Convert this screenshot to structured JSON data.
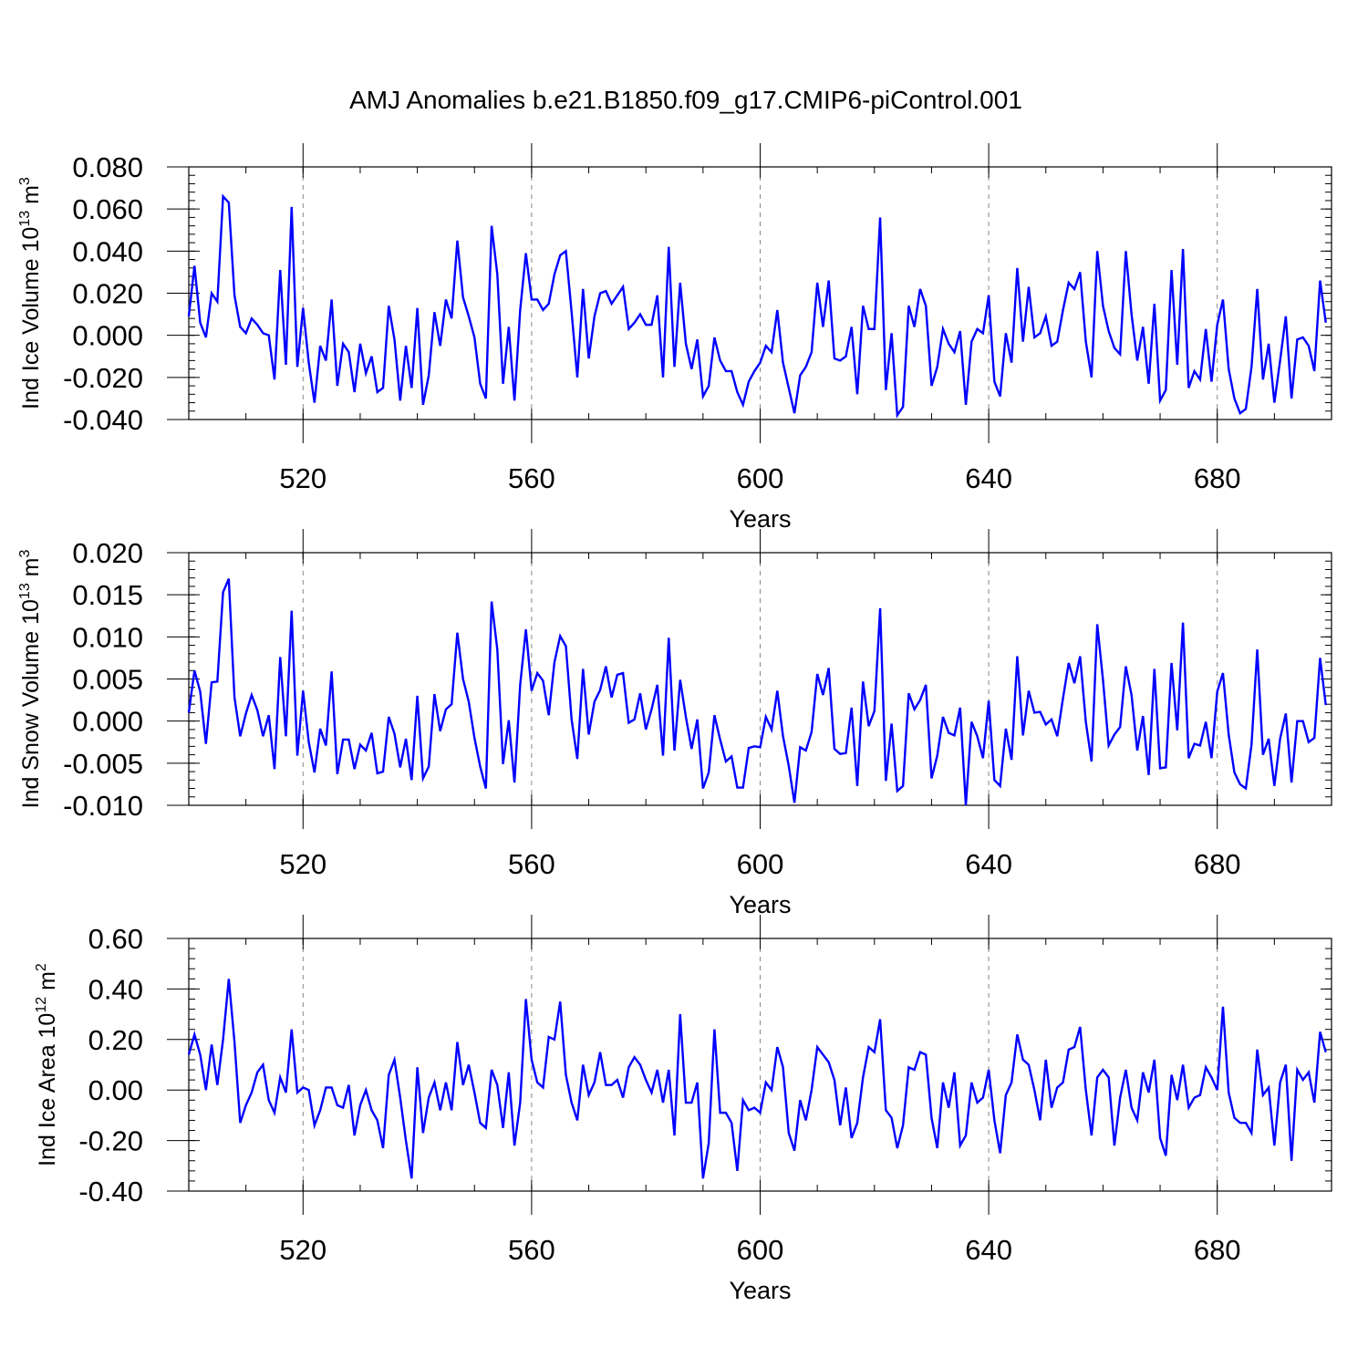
{
  "title": "AMJ Anomalies b.e21.B1850.f09_g17.CMIP6-piControl.001",
  "series_color": "#0000ff",
  "chart_data": [
    {
      "type": "line",
      "ylabel": "Ind Ice Volume",
      "ylabel_scale": "10",
      "ylabel_exp": "13",
      "ylabel_unit": "m",
      "ylabel_unit_exp": "3",
      "xlabel": "Years",
      "xlim": [
        500,
        700
      ],
      "ylim": [
        -0.04,
        0.08
      ],
      "xticks": [
        520,
        560,
        600,
        640,
        680
      ],
      "xtick_labels": [
        "520",
        "560",
        "600",
        "640",
        "680"
      ],
      "yticks": [
        -0.04,
        -0.02,
        0.0,
        0.02,
        0.04,
        0.06,
        0.08
      ],
      "ytick_labels": [
        "-0.040",
        "-0.020",
        "0.000",
        "0.020",
        "0.040",
        "0.060",
        "0.080"
      ],
      "grid": "vertical dashed at major x ticks",
      "x_start": 500,
      "x_step": 1,
      "values": [
        0.009,
        0.033,
        0.006,
        -0.001,
        0.02,
        0.016,
        0.066,
        0.063,
        0.019,
        0.004,
        0.001,
        0.008,
        0.005,
        0.001,
        0.0,
        -0.021,
        0.031,
        -0.014,
        0.061,
        -0.015,
        0.013,
        -0.013,
        -0.032,
        -0.005,
        -0.012,
        0.017,
        -0.024,
        -0.004,
        -0.008,
        -0.027,
        -0.004,
        -0.018,
        -0.01,
        -0.027,
        -0.025,
        0.014,
        -0.002,
        -0.031,
        -0.005,
        -0.025,
        0.013,
        -0.033,
        -0.019,
        0.011,
        -0.005,
        0.017,
        0.008,
        0.045,
        0.018,
        0.009,
        -0.001,
        -0.023,
        -0.03,
        0.052,
        0.029,
        -0.023,
        0.004,
        -0.031,
        0.012,
        0.039,
        0.017,
        0.017,
        0.012,
        0.015,
        0.029,
        0.038,
        0.04,
        0.011,
        -0.02,
        0.022,
        -0.011,
        0.009,
        0.02,
        0.021,
        0.015,
        0.019,
        0.023,
        0.003,
        0.006,
        0.01,
        0.005,
        0.005,
        0.019,
        -0.02,
        0.042,
        -0.015,
        0.025,
        -0.004,
        -0.016,
        -0.002,
        -0.029,
        -0.024,
        -0.001,
        -0.012,
        -0.017,
        -0.017,
        -0.027,
        -0.033,
        -0.022,
        -0.017,
        -0.013,
        -0.005,
        -0.008,
        0.012,
        -0.013,
        -0.025,
        -0.037,
        -0.019,
        -0.015,
        -0.008,
        0.025,
        0.004,
        0.026,
        -0.011,
        -0.012,
        -0.01,
        0.004,
        -0.028,
        0.014,
        0.003,
        0.003,
        0.056,
        -0.026,
        0.001,
        -0.038,
        -0.034,
        0.014,
        0.004,
        0.022,
        0.014,
        -0.024,
        -0.015,
        0.003,
        -0.004,
        -0.008,
        0.002,
        -0.033,
        -0.003,
        0.003,
        0.001,
        0.019,
        -0.022,
        -0.029,
        0.001,
        -0.013,
        0.032,
        -0.003,
        0.023,
        -0.001,
        0.001,
        0.009,
        -0.005,
        -0.003,
        0.012,
        0.025,
        0.022,
        0.03,
        -0.003,
        -0.02,
        0.04,
        0.014,
        0.002,
        -0.006,
        -0.009,
        0.04,
        0.01,
        -0.012,
        0.004,
        -0.023,
        0.015,
        -0.031,
        -0.026,
        0.031,
        -0.014,
        0.041,
        -0.025,
        -0.017,
        -0.021,
        0.003,
        -0.022,
        0.005,
        0.017,
        -0.016,
        -0.03,
        -0.037,
        -0.035,
        -0.015,
        0.022,
        -0.021,
        -0.004,
        -0.032,
        -0.012,
        0.009,
        -0.03,
        -0.002,
        -0.001,
        -0.005,
        -0.017,
        0.026,
        0.006
      ]
    },
    {
      "type": "line",
      "ylabel": "Ind Snow Volume",
      "ylabel_scale": "10",
      "ylabel_exp": "13",
      "ylabel_unit": "m",
      "ylabel_unit_exp": "3",
      "xlabel": "Years",
      "xlim": [
        500,
        700
      ],
      "ylim": [
        -0.01,
        0.02
      ],
      "xticks": [
        520,
        560,
        600,
        640,
        680
      ],
      "xtick_labels": [
        "520",
        "560",
        "600",
        "640",
        "680"
      ],
      "yticks": [
        -0.01,
        -0.005,
        0.0,
        0.005,
        0.01,
        0.015,
        0.02
      ],
      "ytick_labels": [
        "-0.010",
        "-0.005",
        "0.000",
        "0.005",
        "0.010",
        "0.015",
        "0.020"
      ],
      "grid": "vertical dashed at major x ticks",
      "x_start": 500,
      "x_step": 1,
      "values": [
        0.001,
        0.006,
        0.0035,
        -0.0027,
        0.0046,
        0.0047,
        0.0153,
        0.0169,
        0.0028,
        -0.0018,
        0.0009,
        0.0031,
        0.0013,
        -0.0018,
        0.0007,
        -0.0057,
        0.0076,
        -0.0018,
        0.0131,
        -0.0041,
        0.0036,
        -0.0025,
        -0.0061,
        -0.0009,
        -0.0029,
        0.0059,
        -0.0063,
        -0.0022,
        -0.0022,
        -0.0057,
        -0.0028,
        -0.0035,
        -0.0014,
        -0.0062,
        -0.006,
        0.0005,
        -0.0015,
        -0.0055,
        -0.0021,
        -0.007,
        0.003,
        -0.0068,
        -0.0054,
        0.0032,
        -0.0012,
        0.0014,
        0.002,
        0.0105,
        0.005,
        0.0023,
        -0.002,
        -0.0054,
        -0.008,
        0.0142,
        0.0085,
        -0.0051,
        0.0001,
        -0.0073,
        0.0043,
        0.0109,
        0.0036,
        0.0057,
        0.0048,
        0.0007,
        0.007,
        0.0101,
        0.0089,
        0.0002,
        -0.0045,
        0.0062,
        -0.0016,
        0.0023,
        0.0037,
        0.0065,
        0.0028,
        0.0055,
        0.0057,
        -0.0002,
        0.0002,
        0.0033,
        -0.001,
        0.0014,
        0.0043,
        -0.0041,
        0.0099,
        -0.0035,
        0.0049,
        0.0005,
        -0.0033,
        0.0002,
        -0.008,
        -0.0061,
        0.0007,
        -0.0022,
        -0.0048,
        -0.0042,
        -0.0079,
        -0.0079,
        -0.0032,
        -0.003,
        -0.0031,
        0.0005,
        -0.001,
        0.0036,
        -0.0018,
        -0.0053,
        -0.0097,
        -0.0031,
        -0.0035,
        -0.0013,
        0.0056,
        0.0031,
        0.0063,
        -0.0033,
        -0.0039,
        -0.0038,
        0.0016,
        -0.0077,
        0.0047,
        -0.0006,
        0.0012,
        0.0134,
        -0.0071,
        -0.0003,
        -0.0083,
        -0.0077,
        0.0033,
        0.0014,
        0.0025,
        0.0043,
        -0.0068,
        -0.0041,
        0.0005,
        -0.0014,
        -0.0017,
        0.0016,
        -0.01,
        -0.0001,
        -0.0018,
        -0.0044,
        0.0024,
        -0.007,
        -0.0077,
        -0.0009,
        -0.0046,
        0.0077,
        -0.0017,
        0.0036,
        0.001,
        0.0011,
        -0.0004,
        0.0002,
        -0.0018,
        0.0027,
        0.0069,
        0.0045,
        0.0077,
        -0.0001,
        -0.0048,
        0.0115,
        0.0049,
        -0.0029,
        -0.0016,
        -0.0007,
        0.0065,
        0.0031,
        -0.0035,
        0.0006,
        -0.0064,
        0.0062,
        -0.0056,
        -0.0055,
        0.0069,
        -0.0011,
        0.0117,
        -0.0044,
        -0.0027,
        -0.0029,
        -0.0001,
        -0.0044,
        0.0035,
        0.0057,
        -0.0016,
        -0.0061,
        -0.0075,
        -0.008,
        -0.0028,
        0.0085,
        -0.004,
        -0.0021,
        -0.0077,
        -0.0021,
        0.0009,
        -0.0073,
        0.0,
        0.0,
        -0.0025,
        -0.002,
        0.0075,
        0.0019
      ]
    },
    {
      "type": "line",
      "ylabel": "Ind Ice Area",
      "ylabel_scale": "10",
      "ylabel_exp": "12",
      "ylabel_unit": "m",
      "ylabel_unit_exp": "2",
      "xlabel": "Years",
      "xlim": [
        500,
        700
      ],
      "ylim": [
        -0.4,
        0.6
      ],
      "xticks": [
        520,
        560,
        600,
        640,
        680
      ],
      "xtick_labels": [
        "520",
        "560",
        "600",
        "640",
        "680"
      ],
      "yticks": [
        -0.4,
        -0.2,
        0.0,
        0.2,
        0.4,
        0.6
      ],
      "ytick_labels": [
        "-0.40",
        "-0.20",
        "0.00",
        "0.20",
        "0.40",
        "0.60"
      ],
      "grid": "vertical dashed at major x ticks",
      "x_start": 500,
      "x_step": 1,
      "values": [
        0.14,
        0.22,
        0.14,
        0.0,
        0.18,
        0.02,
        0.2,
        0.44,
        0.19,
        -0.13,
        -0.06,
        -0.01,
        0.07,
        0.1,
        -0.04,
        -0.09,
        0.05,
        -0.01,
        0.24,
        -0.01,
        0.01,
        0.0,
        -0.14,
        -0.08,
        0.01,
        0.01,
        -0.06,
        -0.07,
        0.02,
        -0.18,
        -0.06,
        0.0,
        -0.08,
        -0.12,
        -0.23,
        0.06,
        0.12,
        -0.03,
        -0.2,
        -0.35,
        0.09,
        -0.17,
        -0.03,
        0.03,
        -0.08,
        0.03,
        -0.08,
        0.19,
        0.02,
        0.1,
        -0.01,
        -0.13,
        -0.15,
        0.08,
        0.02,
        -0.15,
        0.07,
        -0.22,
        -0.05,
        0.36,
        0.12,
        0.03,
        0.01,
        0.21,
        0.2,
        0.35,
        0.06,
        -0.05,
        -0.12,
        0.1,
        -0.02,
        0.03,
        0.15,
        0.02,
        0.02,
        0.04,
        -0.03,
        0.09,
        0.13,
        0.1,
        0.04,
        -0.01,
        0.08,
        -0.05,
        0.08,
        -0.18,
        0.3,
        -0.05,
        -0.05,
        0.03,
        -0.35,
        -0.21,
        0.24,
        -0.09,
        -0.09,
        -0.13,
        -0.32,
        -0.04,
        -0.08,
        -0.07,
        -0.09,
        0.03,
        0.0,
        0.17,
        0.09,
        -0.17,
        -0.24,
        -0.04,
        -0.12,
        0.0,
        0.17,
        0.14,
        0.11,
        0.04,
        -0.14,
        0.01,
        -0.19,
        -0.13,
        0.05,
        0.17,
        0.15,
        0.28,
        -0.08,
        -0.11,
        -0.23,
        -0.14,
        0.09,
        0.08,
        0.15,
        0.14,
        -0.11,
        -0.23,
        0.03,
        -0.07,
        0.07,
        -0.22,
        -0.18,
        0.03,
        -0.05,
        -0.03,
        0.08,
        -0.12,
        -0.25,
        -0.02,
        0.03,
        0.22,
        0.12,
        0.1,
        0.0,
        -0.12,
        0.12,
        -0.07,
        0.01,
        0.03,
        0.16,
        0.17,
        0.25,
        0.0,
        -0.18,
        0.05,
        0.08,
        0.05,
        -0.22,
        -0.03,
        0.08,
        -0.07,
        -0.12,
        0.07,
        -0.01,
        0.12,
        -0.19,
        -0.26,
        0.06,
        -0.04,
        0.1,
        -0.07,
        -0.03,
        -0.02,
        0.09,
        0.05,
        0.0,
        0.33,
        -0.01,
        -0.11,
        -0.13,
        -0.13,
        -0.17,
        0.16,
        -0.02,
        0.01,
        -0.22,
        0.03,
        0.1,
        -0.28,
        0.08,
        0.04,
        0.07,
        -0.05,
        0.23,
        0.15
      ]
    }
  ]
}
